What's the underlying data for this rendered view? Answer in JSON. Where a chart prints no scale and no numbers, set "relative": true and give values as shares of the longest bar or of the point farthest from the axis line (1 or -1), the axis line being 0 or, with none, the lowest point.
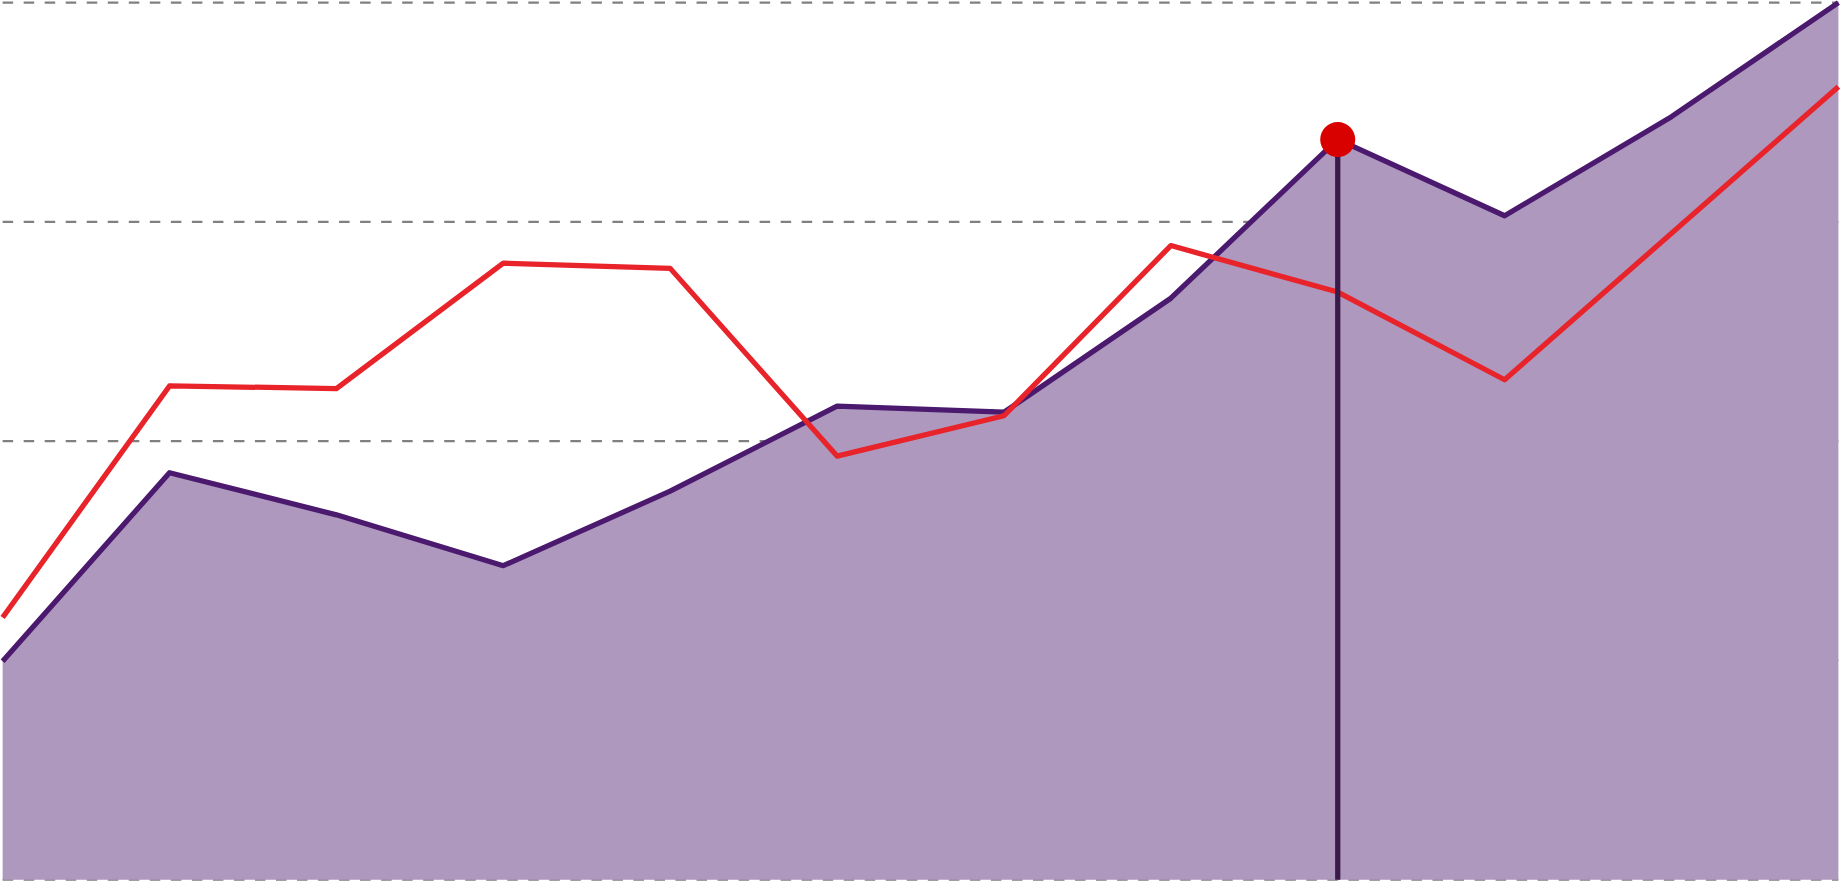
{
  "chart_data": {
    "type": "line",
    "relative": true,
    "grid": "y",
    "categories": [
      null,
      null,
      null,
      null,
      null,
      null,
      null,
      null,
      null,
      null,
      null,
      null
    ],
    "series": [
      {
        "type": "area",
        "color": "#4b1a6e",
        "values": [
          0.249,
          0.464,
          0.416,
          0.358,
          0.443,
          0.54,
          0.533,
          0.663,
          0.844,
          0.757,
          0.87,
          1
        ]
      },
      {
        "color": "#e8232a",
        "values": [
          0.299,
          0.563,
          0.56,
          0.703,
          0.697,
          0.483,
          0.529,
          0.723,
          0.67,
          0.57,
          0.737,
          0.904
        ]
      }
    ]
  }
}
